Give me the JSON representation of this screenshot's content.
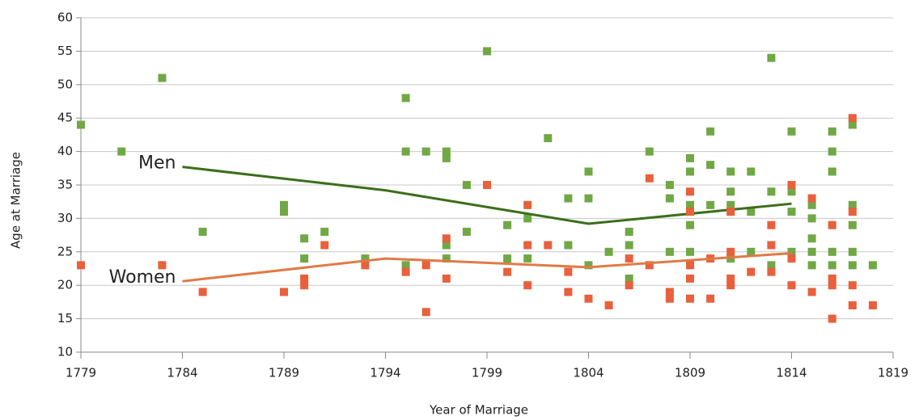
{
  "chart_data": {
    "type": "scatter",
    "x_label": "Year of Marriage",
    "y_label": "Age at Marriage",
    "xlim": [
      1779,
      1819
    ],
    "xticks": [
      1779,
      1784,
      1789,
      1794,
      1799,
      1804,
      1809,
      1814,
      1819
    ],
    "ylim": [
      10,
      60
    ],
    "yticks": [
      10,
      15,
      20,
      25,
      30,
      35,
      40,
      45,
      50,
      55,
      60
    ],
    "grid": true,
    "series": [
      {
        "name": "Men",
        "color": "#70a845",
        "trend_color": "#3b6e1a",
        "x": [
          1779,
          1781,
          1783,
          1785,
          1789,
          1789,
          1790,
          1790,
          1791,
          1793,
          1795,
          1795,
          1795,
          1796,
          1797,
          1797,
          1797,
          1797,
          1798,
          1798,
          1799,
          1800,
          1800,
          1801,
          1801,
          1802,
          1803,
          1803,
          1804,
          1804,
          1804,
          1805,
          1806,
          1806,
          1806,
          1807,
          1808,
          1808,
          1808,
          1809,
          1809,
          1809,
          1809,
          1809,
          1810,
          1810,
          1810,
          1811,
          1811,
          1811,
          1811,
          1812,
          1812,
          1812,
          1813,
          1813,
          1813,
          1814,
          1814,
          1814,
          1814,
          1815,
          1815,
          1815,
          1815,
          1815,
          1816,
          1816,
          1816,
          1816,
          1816,
          1817,
          1817,
          1817,
          1817,
          1817,
          1818
        ],
        "y": [
          44,
          40,
          51,
          28,
          32,
          31,
          27,
          24,
          28,
          24,
          48,
          40,
          23,
          40,
          40,
          39,
          26,
          24,
          35,
          28,
          55,
          29,
          24,
          30,
          24,
          42,
          33,
          26,
          37,
          33,
          23,
          25,
          28,
          26,
          21,
          40,
          35,
          33,
          25,
          39,
          37,
          32,
          29,
          25,
          43,
          38,
          32,
          37,
          34,
          32,
          24,
          37,
          31,
          25,
          54,
          34,
          23,
          43,
          34,
          31,
          25,
          32,
          30,
          27,
          25,
          23,
          43,
          40,
          37,
          25,
          23,
          44,
          32,
          29,
          25,
          23,
          23
        ],
        "trend": {
          "x": [
            1784,
            1794,
            1804,
            1814
          ],
          "y": [
            37.7,
            34.2,
            29.2,
            32.2
          ]
        }
      },
      {
        "name": "Women",
        "color": "#e8603c",
        "trend_color": "#e07a45",
        "x": [
          1779,
          1783,
          1785,
          1789,
          1790,
          1790,
          1791,
          1793,
          1795,
          1796,
          1796,
          1797,
          1797,
          1799,
          1800,
          1801,
          1801,
          1801,
          1802,
          1803,
          1803,
          1804,
          1805,
          1806,
          1806,
          1807,
          1807,
          1808,
          1808,
          1809,
          1809,
          1809,
          1809,
          1809,
          1810,
          1810,
          1811,
          1811,
          1811,
          1811,
          1812,
          1813,
          1813,
          1813,
          1814,
          1814,
          1814,
          1815,
          1815,
          1816,
          1816,
          1816,
          1816,
          1817,
          1817,
          1817,
          1817,
          1818
        ],
        "y": [
          23,
          23,
          19,
          19,
          21,
          20,
          26,
          23,
          22,
          23,
          16,
          27,
          21,
          35,
          22,
          32,
          26,
          20,
          26,
          22,
          19,
          18,
          17,
          24,
          20,
          36,
          23,
          19,
          18,
          34,
          31,
          23,
          21,
          18,
          24,
          18,
          31,
          25,
          21,
          20,
          22,
          29,
          26,
          22,
          35,
          24,
          20,
          33,
          19,
          29,
          21,
          20,
          15,
          45,
          31,
          20,
          17,
          17
        ],
        "trend": {
          "x": [
            1784,
            1794,
            1804,
            1814
          ],
          "y": [
            20.6,
            24.0,
            22.7,
            24.8
          ]
        }
      }
    ]
  }
}
